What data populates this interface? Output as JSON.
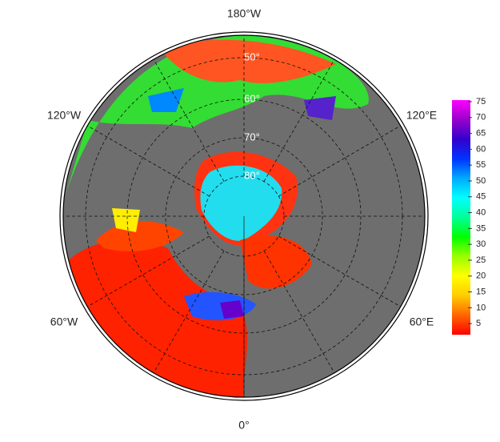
{
  "map": {
    "lon_labels": [
      "180°W",
      "120°E",
      "60°E",
      "0°",
      "60°W",
      "120°W"
    ],
    "lat_labels": [
      "50°",
      "60°",
      "70°",
      "80°"
    ],
    "colorbar": {
      "lim": [
        1.5,
        75.5
      ],
      "ticks": [
        5,
        10,
        15,
        20,
        25,
        30,
        35,
        40,
        45,
        50,
        55,
        60,
        65,
        70,
        75
      ],
      "colors": [
        "#ff0000",
        "#ff6600",
        "#ffcc00",
        "#ffff00",
        "#99ff00",
        "#00ff00",
        "#00ff99",
        "#00ffff",
        "#00aaff",
        "#0033ff",
        "#3300cc",
        "#9900cc",
        "#ff00ff"
      ]
    }
  }
}
